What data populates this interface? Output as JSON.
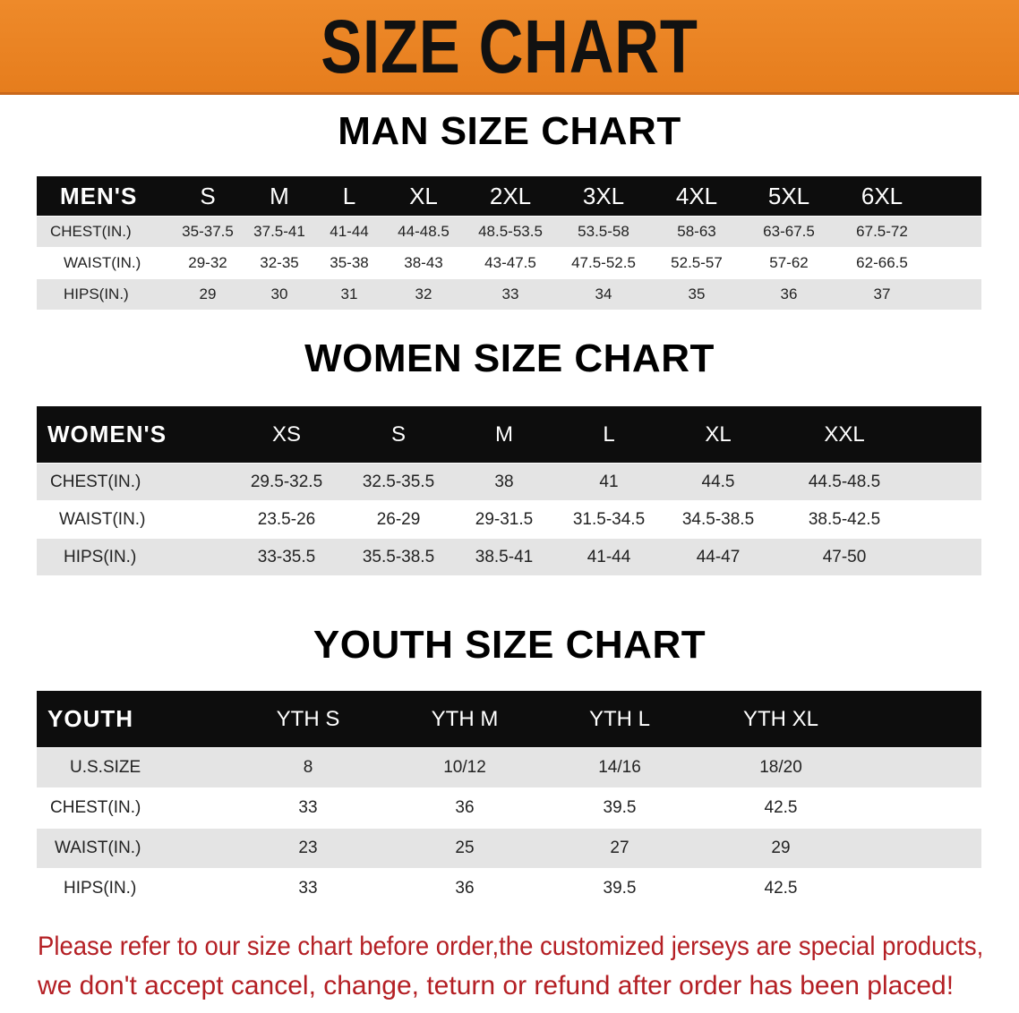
{
  "banner": {
    "title": "SIZE CHART",
    "color": "#e9821f"
  },
  "men": {
    "title": "MAN SIZE CHART",
    "header": [
      "MEN'S",
      "S",
      "M",
      "L",
      "XL",
      "2XL",
      "3XL",
      "4XL",
      "5XL",
      "6XL"
    ],
    "rows": [
      [
        "CHEST(IN.)",
        "35-37.5",
        "37.5-41",
        "41-44",
        "44-48.5",
        "48.5-53.5",
        "53.5-58",
        "58-63",
        "63-67.5",
        "67.5-72"
      ],
      [
        "WAIST(IN.)",
        "29-32",
        "32-35",
        "35-38",
        "38-43",
        "43-47.5",
        "47.5-52.5",
        "52.5-57",
        "57-62",
        "62-66.5"
      ],
      [
        "HIPS(IN.)",
        "29",
        "30",
        "31",
        "32",
        "33",
        "34",
        "35",
        "36",
        "37"
      ]
    ]
  },
  "women": {
    "title": "WOMEN SIZE CHART",
    "header": [
      "WOMEN'S",
      "XS",
      "S",
      "M",
      "L",
      "XL",
      "XXL"
    ],
    "rows": [
      [
        "CHEST(IN.)",
        "29.5-32.5",
        "32.5-35.5",
        "38",
        "41",
        "44.5",
        "44.5-48.5"
      ],
      [
        "WAIST(IN.)",
        "23.5-26",
        "26-29",
        "29-31.5",
        "31.5-34.5",
        "34.5-38.5",
        "38.5-42.5"
      ],
      [
        "HIPS(IN.)",
        "33-35.5",
        "35.5-38.5",
        "38.5-41",
        "41-44",
        "44-47",
        "47-50"
      ]
    ]
  },
  "youth": {
    "title": "YOUTH SIZE CHART",
    "header": [
      "YOUTH",
      "YTH S",
      "YTH M",
      "YTH L",
      "YTH XL"
    ],
    "rows": [
      [
        "U.S.SIZE",
        "8",
        "10/12",
        "14/16",
        "18/20"
      ],
      [
        "CHEST(IN.)",
        "33",
        "36",
        "39.5",
        "42.5"
      ],
      [
        "WAIST(IN.)",
        "23",
        "25",
        "27",
        "29"
      ],
      [
        "HIPS(IN.)",
        "33",
        "36",
        "39.5",
        "42.5"
      ]
    ]
  },
  "notice": {
    "line1": "Please refer to our size chart before order,the customized jerseys are special products,",
    "line2": "we don't accept cancel, change, teturn or refund after order has been placed!",
    "color": "#b41f24"
  }
}
